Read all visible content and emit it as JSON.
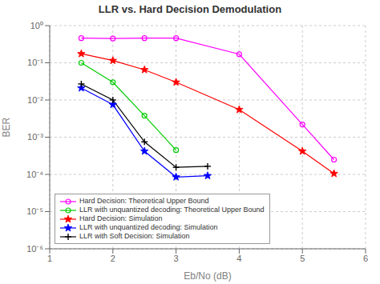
{
  "chart_data": {
    "type": "line",
    "title": "LLR vs. Hard Decision Demodulation",
    "xlabel": "Eb/No (dB)",
    "ylabel": "BER",
    "log": "y",
    "grid": true,
    "legend": "lower left",
    "xlim": [
      1,
      6
    ],
    "xticks": [
      1,
      2,
      3,
      4,
      5,
      6
    ],
    "ylim": [
      1e-06,
      1
    ],
    "yticks": [
      {
        "value": 1e-06,
        "label": "10⁻⁶"
      },
      {
        "value": 1e-05,
        "label": "10⁻⁵"
      },
      {
        "value": 0.0001,
        "label": "10⁻⁴"
      },
      {
        "value": 0.001,
        "label": "10⁻³"
      },
      {
        "value": 0.01,
        "label": "10⁻²"
      },
      {
        "value": 0.1,
        "label": "10⁻¹"
      },
      {
        "value": 1,
        "label": "10⁰"
      }
    ],
    "series": [
      {
        "name": "Hard Decision: Theoretical Upper Bound",
        "color": "#ff00ff",
        "marker": "circle",
        "line_style": "solid",
        "x": [
          1.5,
          2.0,
          2.5,
          3.0,
          4.0,
          5.0,
          5.5
        ],
        "values": [
          0.46,
          0.45,
          0.46,
          0.46,
          0.17,
          0.0022,
          0.00025
        ]
      },
      {
        "name": "LLR with unquantized decoding: Theoretical Upper Bound",
        "color": "#00cc00",
        "marker": "circle",
        "line_style": "solid",
        "x": [
          1.5,
          2.0,
          2.5,
          3.0
        ],
        "values": [
          0.1,
          0.03,
          0.0038,
          0.00045
        ]
      },
      {
        "name": "Hard Decision: Simulation",
        "color": "#ff0000",
        "marker": "star",
        "line_style": "solid",
        "x": [
          1.5,
          2.0,
          2.5,
          3.0,
          4.0,
          5.0,
          5.5
        ],
        "values": [
          0.175,
          0.115,
          0.065,
          0.03,
          0.0055,
          0.00042,
          0.000105
        ]
      },
      {
        "name": "LLR with unquantized decoding: Simulation",
        "color": "#0000ff",
        "marker": "star",
        "line_style": "solid",
        "x": [
          1.5,
          2.0,
          2.5,
          3.0,
          3.5
        ],
        "values": [
          0.021,
          0.0075,
          0.00042,
          8.5e-05,
          9.2e-05
        ]
      },
      {
        "name": "LLR with Soft Decision: Simulation",
        "color": "#000000",
        "marker": "plus",
        "line_style": "solid",
        "x": [
          1.5,
          2.0,
          2.5,
          3.0,
          3.5
        ],
        "values": [
          0.027,
          0.01,
          0.00075,
          0.000155,
          0.000165
        ]
      }
    ]
  }
}
